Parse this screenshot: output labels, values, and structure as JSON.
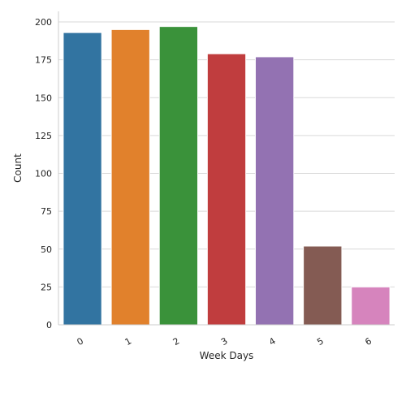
{
  "chart_data": {
    "type": "bar",
    "title": "",
    "xlabel": "Week Days",
    "ylabel": "Count",
    "categories": [
      "0",
      "1",
      "2",
      "3",
      "4",
      "5",
      "6"
    ],
    "values": [
      193,
      195,
      197,
      179,
      177,
      52,
      25
    ],
    "ylim": [
      0,
      207
    ],
    "yticks": [
      "0",
      "25",
      "50",
      "75",
      "100",
      "125",
      "150",
      "175",
      "200"
    ],
    "grid": "horizontal",
    "colors": [
      "#3274a1",
      "#e1812c",
      "#3a923a",
      "#c03d3e",
      "#9372b2",
      "#845b53",
      "#d684bd"
    ]
  }
}
